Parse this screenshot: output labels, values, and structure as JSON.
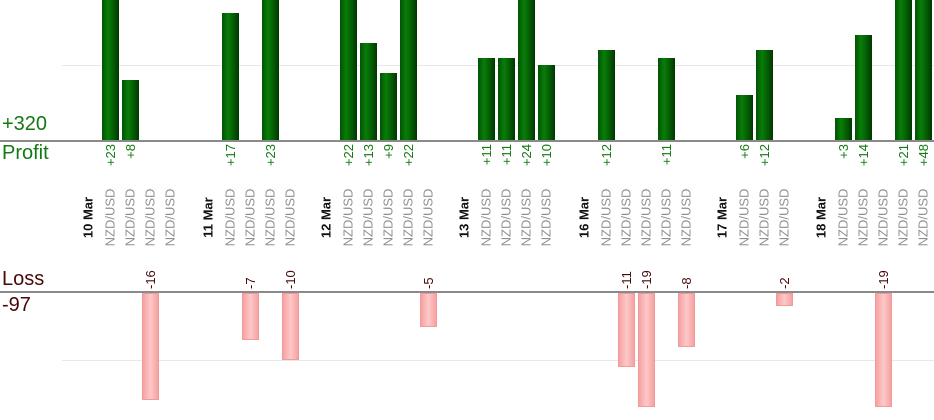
{
  "chart_data": {
    "type": "bar",
    "profit_axis": {
      "label": "Profit",
      "total_label": "+320",
      "gridline_value": 10,
      "visible_range": [
        0,
        19
      ]
    },
    "loss_axis": {
      "label": "Loss",
      "total_label": "-97",
      "gridline_value": -10,
      "visible_range": [
        0,
        -17
      ]
    },
    "groups": [
      {
        "date": "10 Mar",
        "trades": [
          {
            "symbol": "NZD/USD",
            "value": 23
          },
          {
            "symbol": "NZD/USD",
            "value": 8
          },
          {
            "symbol": "NZD/USD",
            "value": -16
          },
          {
            "symbol": "NZD/USD",
            "value": 0
          }
        ]
      },
      {
        "date": "11 Mar",
        "trades": [
          {
            "symbol": "NZD/USD",
            "value": 17
          },
          {
            "symbol": "NZD/USD",
            "value": -7
          },
          {
            "symbol": "NZD/USD",
            "value": 23
          },
          {
            "symbol": "NZD/USD",
            "value": -10
          }
        ]
      },
      {
        "date": "12 Mar",
        "trades": [
          {
            "symbol": "NZD/USD",
            "value": 22
          },
          {
            "symbol": "NZD/USD",
            "value": 13
          },
          {
            "symbol": "NZD/USD",
            "value": 9
          },
          {
            "symbol": "NZD/USD",
            "value": 22
          },
          {
            "symbol": "NZD/USD",
            "value": -5
          }
        ]
      },
      {
        "date": "13 Mar",
        "trades": [
          {
            "symbol": "NZD/USD",
            "value": 11
          },
          {
            "symbol": "NZD/USD",
            "value": 11
          },
          {
            "symbol": "NZD/USD",
            "value": 24
          },
          {
            "symbol": "NZD/USD",
            "value": 10
          }
        ]
      },
      {
        "date": "16 Mar",
        "trades": [
          {
            "symbol": "NZD/USD",
            "value": 12
          },
          {
            "symbol": "NZD/USD",
            "value": -11
          },
          {
            "symbol": "NZD/USD",
            "value": -19
          },
          {
            "symbol": "NZD/USD",
            "value": 11
          },
          {
            "symbol": "NZD/USD",
            "value": -8
          }
        ]
      },
      {
        "date": "17 Mar",
        "trades": [
          {
            "symbol": "NZD/USD",
            "value": 6
          },
          {
            "symbol": "NZD/USD",
            "value": 12
          },
          {
            "symbol": "NZD/USD",
            "value": -2
          }
        ]
      },
      {
        "date": "18 Mar",
        "trades": [
          {
            "symbol": "NZD/USD",
            "value": 3
          },
          {
            "symbol": "NZD/USD",
            "value": 14
          },
          {
            "symbol": "NZD/USD",
            "value": -19
          },
          {
            "symbol": "NZD/USD",
            "value": 21
          },
          {
            "symbol": "NZD/USD",
            "value": 48
          }
        ]
      }
    ],
    "colors": {
      "profit_bar": "#067306",
      "loss_bar": "#f9b0b0",
      "profit_text": "#137a13",
      "loss_text": "#470909",
      "date_text": "#111111",
      "symbol_text": "#909090",
      "axis_line": "#8a8a8a",
      "gridline": "#e8e8e8"
    }
  }
}
